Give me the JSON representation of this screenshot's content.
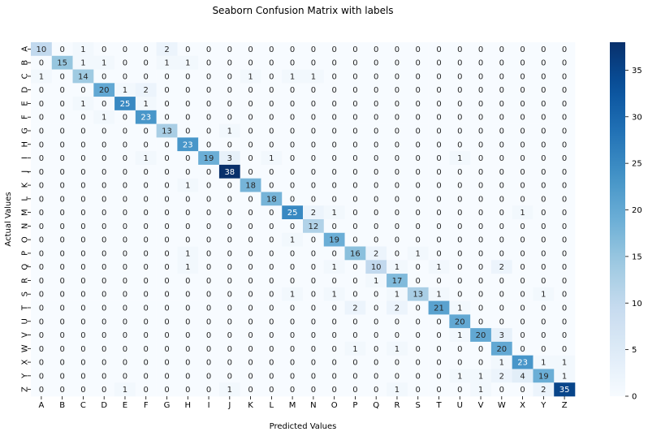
{
  "chart_data": {
    "type": "heatmap",
    "title": "Seaborn Confusion Matrix with labels",
    "xlabel": "Predicted Values",
    "ylabel": "Actual Values",
    "x_categories": [
      "A",
      "B",
      "C",
      "D",
      "E",
      "F",
      "G",
      "H",
      "I",
      "J",
      "K",
      "L",
      "M",
      "N",
      "O",
      "P",
      "Q",
      "R",
      "S",
      "T",
      "U",
      "V",
      "W",
      "X",
      "Y",
      "Z"
    ],
    "y_categories": [
      "A",
      "B",
      "C",
      "D",
      "E",
      "F",
      "G",
      "H",
      "I",
      "J",
      "K",
      "L",
      "M",
      "N",
      "O",
      "P",
      "Q",
      "R",
      "S",
      "T",
      "U",
      "V",
      "W",
      "X",
      "Y",
      "Z"
    ],
    "matrix": [
      [
        10,
        0,
        1,
        0,
        0,
        0,
        2,
        0,
        0,
        0,
        0,
        0,
        0,
        0,
        0,
        0,
        0,
        0,
        0,
        0,
        0,
        0,
        0,
        0,
        0,
        0
      ],
      [
        0,
        15,
        1,
        1,
        0,
        0,
        1,
        1,
        0,
        0,
        0,
        0,
        0,
        0,
        0,
        0,
        0,
        0,
        0,
        0,
        0,
        0,
        0,
        0,
        0,
        0
      ],
      [
        1,
        0,
        14,
        0,
        0,
        0,
        0,
        0,
        0,
        0,
        1,
        0,
        1,
        1,
        0,
        0,
        0,
        0,
        0,
        0,
        0,
        0,
        0,
        0,
        0,
        0
      ],
      [
        0,
        0,
        0,
        20,
        1,
        2,
        0,
        0,
        0,
        0,
        0,
        0,
        0,
        0,
        0,
        0,
        0,
        0,
        0,
        0,
        0,
        0,
        0,
        0,
        0,
        0
      ],
      [
        0,
        0,
        1,
        0,
        25,
        1,
        0,
        0,
        0,
        0,
        0,
        0,
        0,
        0,
        0,
        0,
        0,
        0,
        0,
        0,
        0,
        0,
        0,
        0,
        0,
        0
      ],
      [
        0,
        0,
        0,
        1,
        0,
        23,
        0,
        0,
        0,
        0,
        0,
        0,
        0,
        0,
        0,
        0,
        0,
        0,
        0,
        0,
        0,
        0,
        0,
        0,
        0,
        0
      ],
      [
        0,
        0,
        0,
        0,
        0,
        0,
        13,
        0,
        0,
        1,
        0,
        0,
        0,
        0,
        0,
        0,
        0,
        0,
        0,
        0,
        0,
        0,
        0,
        0,
        0,
        0
      ],
      [
        0,
        0,
        0,
        0,
        0,
        0,
        0,
        23,
        0,
        0,
        0,
        0,
        0,
        0,
        0,
        0,
        0,
        0,
        0,
        0,
        0,
        0,
        0,
        0,
        0,
        0
      ],
      [
        0,
        0,
        0,
        0,
        0,
        1,
        0,
        0,
        19,
        3,
        0,
        1,
        0,
        0,
        0,
        0,
        0,
        0,
        0,
        0,
        1,
        0,
        0,
        0,
        0,
        0
      ],
      [
        0,
        0,
        0,
        0,
        0,
        0,
        0,
        0,
        0,
        38,
        0,
        0,
        0,
        0,
        0,
        0,
        0,
        0,
        0,
        0,
        0,
        0,
        0,
        0,
        0,
        0
      ],
      [
        0,
        0,
        0,
        0,
        0,
        0,
        0,
        1,
        0,
        0,
        18,
        0,
        0,
        0,
        0,
        0,
        0,
        0,
        0,
        0,
        0,
        0,
        0,
        0,
        0,
        0
      ],
      [
        0,
        0,
        0,
        0,
        0,
        0,
        0,
        0,
        0,
        0,
        0,
        18,
        0,
        0,
        0,
        0,
        0,
        0,
        0,
        0,
        0,
        0,
        0,
        0,
        0,
        0
      ],
      [
        0,
        0,
        0,
        0,
        0,
        0,
        0,
        0,
        0,
        0,
        0,
        0,
        25,
        2,
        1,
        0,
        0,
        0,
        0,
        0,
        0,
        0,
        0,
        1,
        0,
        0
      ],
      [
        0,
        0,
        0,
        0,
        0,
        0,
        0,
        0,
        0,
        0,
        0,
        0,
        0,
        12,
        0,
        0,
        0,
        0,
        0,
        0,
        0,
        0,
        0,
        0,
        0,
        0
      ],
      [
        0,
        0,
        0,
        0,
        0,
        0,
        0,
        0,
        0,
        0,
        0,
        0,
        1,
        0,
        19,
        0,
        0,
        0,
        0,
        0,
        0,
        0,
        0,
        0,
        0,
        0
      ],
      [
        0,
        0,
        0,
        0,
        0,
        0,
        0,
        1,
        0,
        0,
        0,
        0,
        0,
        0,
        0,
        16,
        2,
        0,
        1,
        0,
        0,
        0,
        0,
        0,
        0,
        0
      ],
      [
        0,
        0,
        0,
        0,
        0,
        0,
        0,
        1,
        0,
        0,
        0,
        0,
        0,
        0,
        1,
        0,
        10,
        1,
        0,
        1,
        0,
        0,
        2,
        0,
        0,
        0
      ],
      [
        0,
        0,
        0,
        0,
        0,
        0,
        0,
        0,
        0,
        0,
        0,
        0,
        0,
        0,
        0,
        0,
        1,
        17,
        0,
        0,
        0,
        0,
        0,
        0,
        0,
        0
      ],
      [
        0,
        0,
        0,
        0,
        0,
        0,
        0,
        0,
        0,
        0,
        0,
        0,
        1,
        0,
        1,
        0,
        0,
        1,
        13,
        1,
        0,
        0,
        0,
        0,
        1,
        0
      ],
      [
        0,
        0,
        0,
        0,
        0,
        0,
        0,
        0,
        0,
        0,
        0,
        0,
        0,
        0,
        0,
        2,
        0,
        2,
        0,
        21,
        1,
        0,
        0,
        0,
        0,
        0
      ],
      [
        0,
        0,
        0,
        0,
        0,
        0,
        0,
        0,
        0,
        0,
        0,
        0,
        0,
        0,
        0,
        0,
        0,
        0,
        0,
        0,
        20,
        0,
        0,
        0,
        0,
        0
      ],
      [
        0,
        0,
        0,
        0,
        0,
        0,
        0,
        0,
        0,
        0,
        0,
        0,
        0,
        0,
        0,
        0,
        0,
        0,
        0,
        0,
        1,
        20,
        3,
        0,
        0,
        0
      ],
      [
        0,
        0,
        0,
        0,
        0,
        0,
        0,
        0,
        0,
        0,
        0,
        0,
        0,
        0,
        0,
        1,
        0,
        1,
        0,
        0,
        0,
        0,
        20,
        0,
        0,
        0
      ],
      [
        0,
        0,
        0,
        0,
        0,
        0,
        0,
        0,
        0,
        0,
        0,
        0,
        0,
        0,
        0,
        0,
        0,
        0,
        0,
        0,
        0,
        0,
        1,
        23,
        1,
        1
      ],
      [
        0,
        0,
        0,
        0,
        0,
        0,
        0,
        0,
        0,
        0,
        0,
        0,
        0,
        0,
        0,
        0,
        0,
        0,
        0,
        0,
        1,
        1,
        2,
        4,
        19,
        1
      ],
      [
        0,
        0,
        0,
        0,
        1,
        0,
        0,
        0,
        0,
        1,
        0,
        0,
        0,
        0,
        0,
        0,
        0,
        1,
        0,
        0,
        0,
        1,
        0,
        0,
        2,
        35
      ]
    ],
    "vmin": 0,
    "vmax": 38,
    "colormap": "Blues",
    "colorbar_ticks": [
      0,
      5,
      10,
      15,
      20,
      25,
      30,
      35
    ],
    "annotations": true,
    "grid": false
  }
}
